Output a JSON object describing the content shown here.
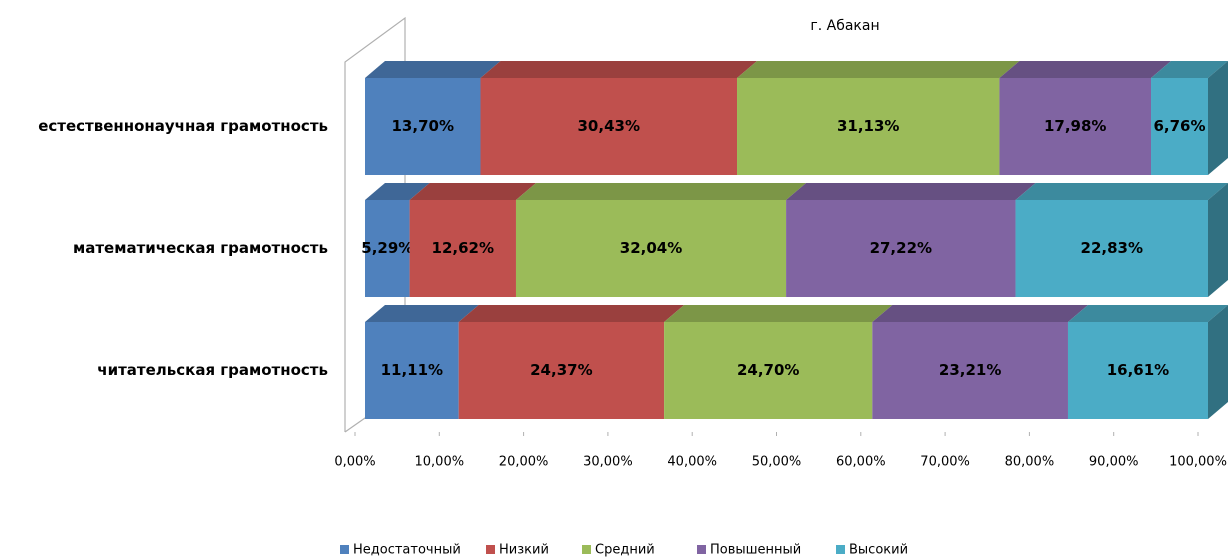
{
  "chart_data": {
    "type": "bar",
    "orientation": "horizontal",
    "stacked": true,
    "title": "г. Абакан",
    "categories": [
      "естественнонаучная грамотность",
      "математическая грамотность",
      "читательская грамотность"
    ],
    "series": [
      {
        "name": "Недостаточный",
        "color": "#4f81bd",
        "values": [
          13.7,
          5.29,
          11.11
        ],
        "value_labels": [
          "13,70%",
          "5,29%",
          "11,11%"
        ]
      },
      {
        "name": "Низкий",
        "color": "#c0504d",
        "values": [
          30.43,
          12.62,
          24.37
        ],
        "value_labels": [
          "30,43%",
          "12,62%",
          "24,37%"
        ]
      },
      {
        "name": "Средний",
        "color": "#9bbb59",
        "values": [
          31.13,
          32.04,
          24.7
        ],
        "value_labels": [
          "31,13%",
          "32,04%",
          "24,70%"
        ]
      },
      {
        "name": "Повышенный",
        "color": "#8064a2",
        "values": [
          17.98,
          27.22,
          23.21
        ],
        "value_labels": [
          "17,98%",
          "27,22%",
          "23,21%"
        ]
      },
      {
        "name": "Высокий",
        "color": "#4bacc6",
        "values": [
          6.76,
          22.83,
          16.61
        ],
        "value_labels": [
          "6,76%",
          "22,83%",
          "16,61%"
        ]
      }
    ],
    "xlim": [
      0,
      100
    ],
    "xticks": [
      {
        "value": 0,
        "label": "0,00%"
      },
      {
        "value": 10,
        "label": "10,00%"
      },
      {
        "value": 20,
        "label": "20,00%"
      },
      {
        "value": 30,
        "label": "30,00%"
      },
      {
        "value": 40,
        "label": "40,00%"
      },
      {
        "value": 50,
        "label": "50,00%"
      },
      {
        "value": 60,
        "label": "60,00%"
      },
      {
        "value": 70,
        "label": "70,00%"
      },
      {
        "value": 80,
        "label": "80,00%"
      },
      {
        "value": 90,
        "label": "90,00%"
      },
      {
        "value": 100,
        "label": "100,00%"
      }
    ],
    "legend": "bottom"
  }
}
